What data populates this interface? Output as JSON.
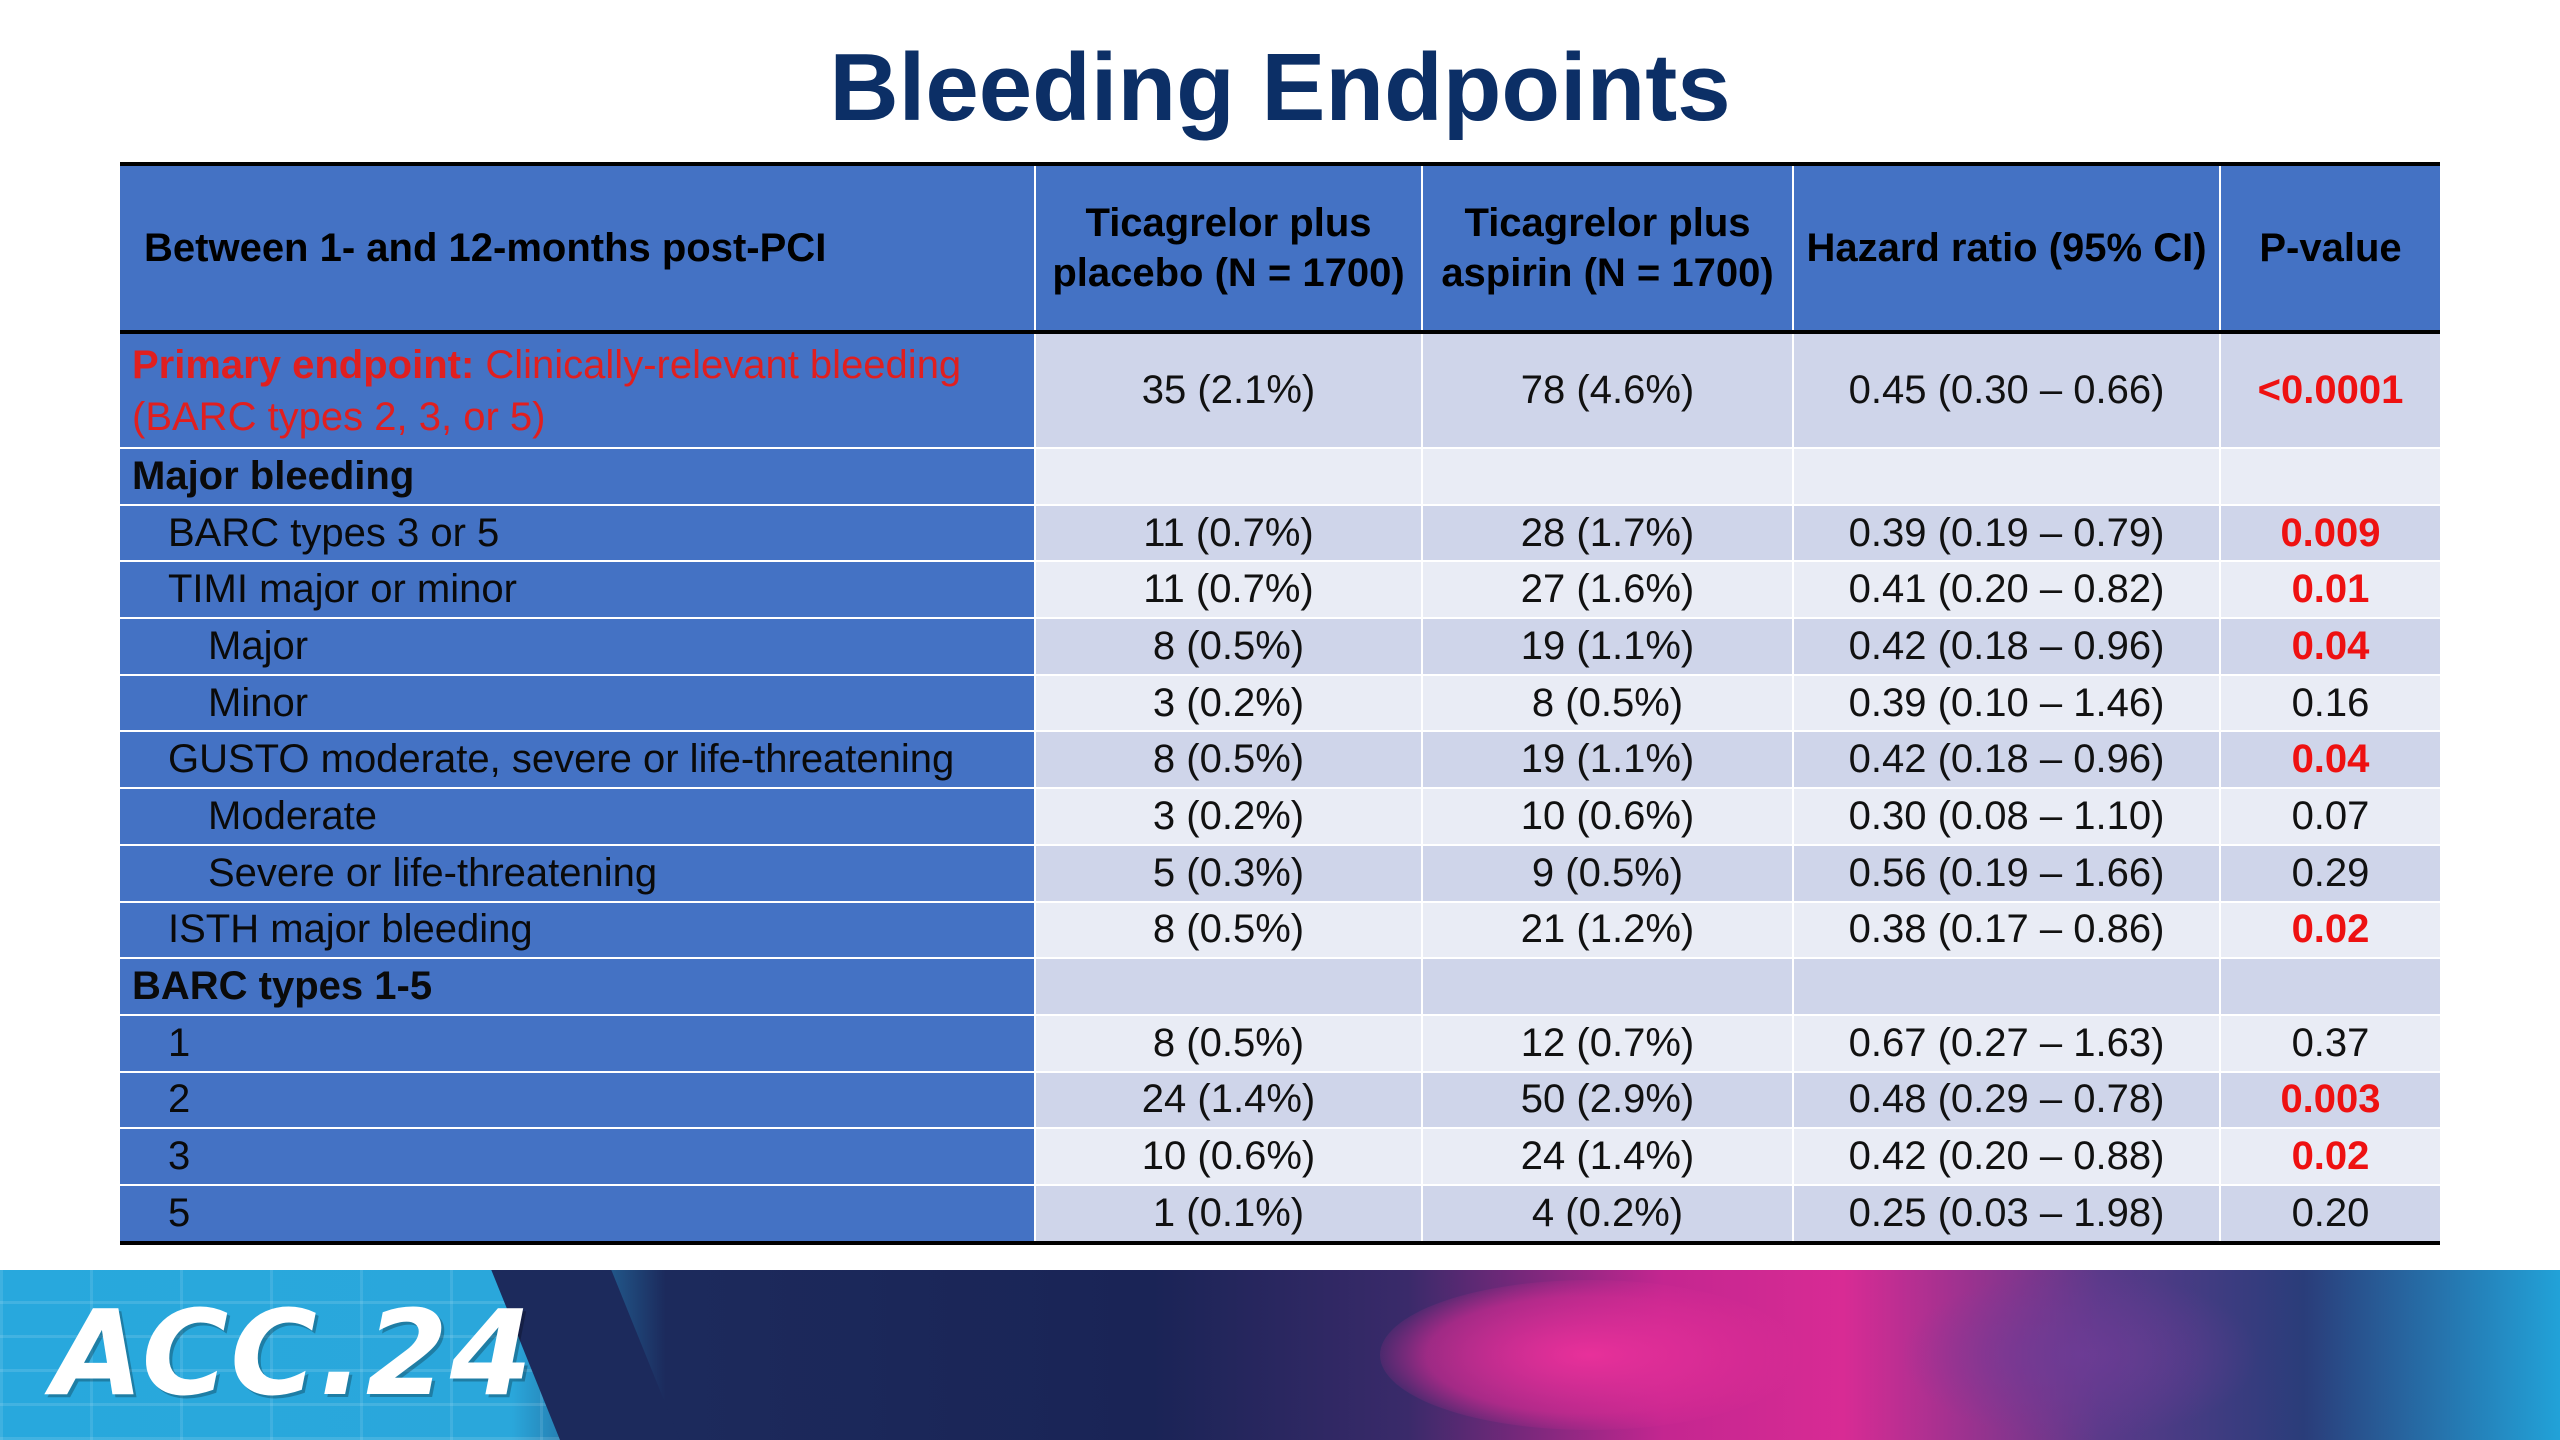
{
  "title": "Bleeding Endpoints",
  "table": {
    "headers": [
      "Between 1- and 12-months post-PCI",
      "Ticagrelor plus placebo (N = 1700)",
      "Ticagrelor plus aspirin (N = 1700)",
      "Hazard ratio (95% CI)",
      "P-value"
    ],
    "primary": {
      "label_bold": "Primary endpoint:",
      "label_rest": " Clinically-relevant bleeding (BARC types 2, 3, or 5)",
      "placebo": "35 (2.1%)",
      "aspirin": "78 (4.6%)",
      "hr": "0.45 (0.30 – 0.66)",
      "p": "<0.0001"
    },
    "rows": [
      {
        "label": "Major bleeding",
        "placebo": "",
        "aspirin": "",
        "hr": "",
        "p": ""
      },
      {
        "label": "BARC types 3 or 5",
        "placebo": "11 (0.7%)",
        "aspirin": "28 (1.7%)",
        "hr": "0.39 (0.19 – 0.79)",
        "p": "0.009"
      },
      {
        "label": "TIMI major or minor",
        "placebo": "11 (0.7%)",
        "aspirin": "27 (1.6%)",
        "hr": "0.41 (0.20 – 0.82)",
        "p": "0.01"
      },
      {
        "label": "Major",
        "placebo": "8 (0.5%)",
        "aspirin": "19 (1.1%)",
        "hr": "0.42 (0.18 – 0.96)",
        "p": "0.04"
      },
      {
        "label": "Minor",
        "placebo": "3 (0.2%)",
        "aspirin": "8 (0.5%)",
        "hr": "0.39 (0.10 – 1.46)",
        "p": "0.16"
      },
      {
        "label": "GUSTO moderate, severe or life-threatening",
        "placebo": "8 (0.5%)",
        "aspirin": "19 (1.1%)",
        "hr": "0.42 (0.18 – 0.96)",
        "p": "0.04"
      },
      {
        "label": "Moderate",
        "placebo": "3 (0.2%)",
        "aspirin": "10 (0.6%)",
        "hr": "0.30 (0.08 – 1.10)",
        "p": "0.07"
      },
      {
        "label": "Severe or life-threatening",
        "placebo": "5 (0.3%)",
        "aspirin": "9 (0.5%)",
        "hr": "0.56 (0.19 – 1.66)",
        "p": "0.29"
      },
      {
        "label": "ISTH major bleeding",
        "placebo": "8 (0.5%)",
        "aspirin": "21 (1.2%)",
        "hr": "0.38 (0.17 – 0.86)",
        "p": "0.02"
      },
      {
        "label": "BARC types 1-5",
        "placebo": "",
        "aspirin": "",
        "hr": "",
        "p": ""
      },
      {
        "label": "1",
        "placebo": "8 (0.5%)",
        "aspirin": "12 (0.7%)",
        "hr": "0.67 (0.27 – 1.63)",
        "p": "0.37"
      },
      {
        "label": "2",
        "placebo": "24 (1.4%)",
        "aspirin": "50 (2.9%)",
        "hr": "0.48 (0.29 – 0.78)",
        "p": "0.003"
      },
      {
        "label": "3",
        "placebo": "10 (0.6%)",
        "aspirin": "24 (1.4%)",
        "hr": "0.42 (0.20 – 0.88)",
        "p": "0.02"
      },
      {
        "label": "5",
        "placebo": "1 (0.1%)",
        "aspirin": "4 (0.2%)",
        "hr": "0.25 (0.03 – 1.98)",
        "p": "0.20"
      }
    ]
  },
  "banner": {
    "logo_text": "ACC.24"
  },
  "colors": {
    "title": "#0c2f66",
    "header_bg": "#4472c4",
    "row_dark": "#cfd5ea",
    "row_light": "#e9ecf5",
    "significant": "#ee1111"
  }
}
